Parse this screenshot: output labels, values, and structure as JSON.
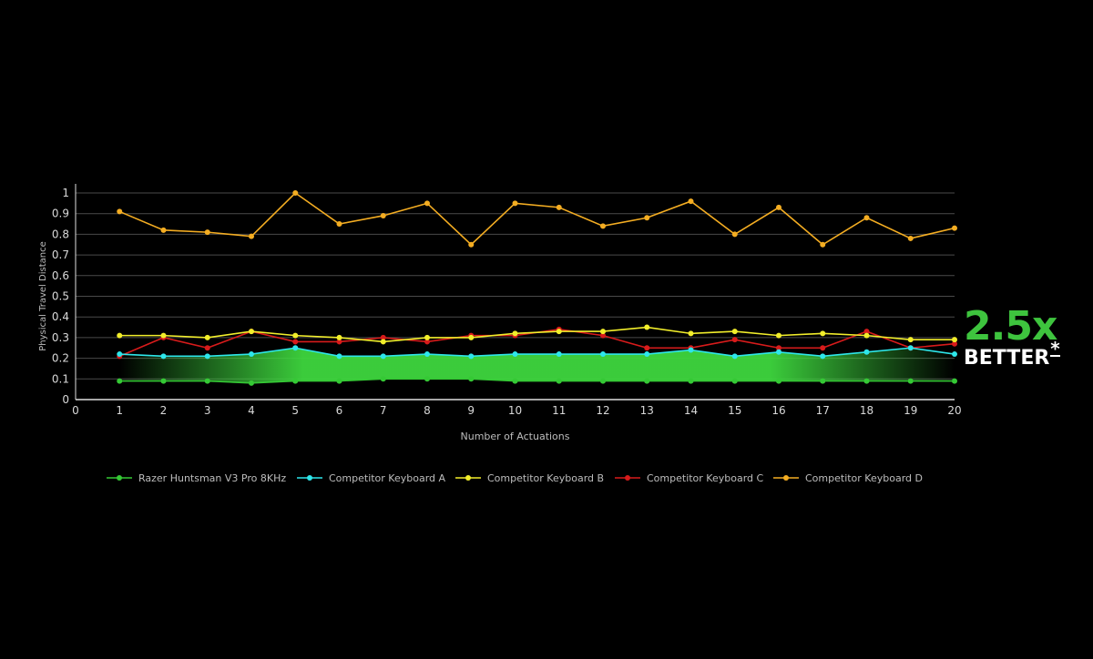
{
  "chart_data": {
    "type": "line",
    "title": "",
    "xlabel": "Number of Actuations",
    "ylabel": "Physical Travel Distance",
    "xlim": [
      0,
      20
    ],
    "ylim": [
      0,
      1
    ],
    "x_ticks": [
      0,
      1,
      2,
      3,
      4,
      5,
      6,
      7,
      8,
      9,
      10,
      11,
      12,
      13,
      14,
      15,
      16,
      17,
      18,
      19,
      20
    ],
    "y_ticks": [
      0,
      0.1,
      0.2,
      0.3,
      0.4,
      0.5,
      0.6,
      0.7,
      0.8,
      0.9,
      1
    ],
    "y_tick_labels": [
      "0",
      "0.1",
      "0.2",
      "0.3",
      "0.4",
      "0.5",
      "0.6",
      "0.7",
      "0.8",
      "0.9",
      "1"
    ],
    "grid": "horizontal",
    "legend_position": "bottom",
    "x": [
      1,
      2,
      3,
      4,
      5,
      6,
      7,
      8,
      9,
      10,
      11,
      12,
      13,
      14,
      15,
      16,
      17,
      18,
      19,
      20
    ],
    "series": [
      {
        "name": "Razer Huntsman V3 Pro 8KHz",
        "color": "#35c935",
        "values": [
          0.09,
          0.09,
          0.09,
          0.08,
          0.09,
          0.09,
          0.1,
          0.1,
          0.1,
          0.09,
          0.09,
          0.09,
          0.09,
          0.09,
          0.09,
          0.09,
          0.09,
          0.09,
          0.09,
          0.09
        ]
      },
      {
        "name": "Competitor Keyboard A",
        "color": "#2ee6ea",
        "values": [
          0.22,
          0.21,
          0.21,
          0.22,
          0.25,
          0.21,
          0.21,
          0.22,
          0.21,
          0.22,
          0.22,
          0.22,
          0.22,
          0.24,
          0.21,
          0.23,
          0.21,
          0.23,
          0.25,
          0.22
        ]
      },
      {
        "name": "Competitor Keyboard B",
        "color": "#f2ee2b",
        "values": [
          0.31,
          0.31,
          0.3,
          0.33,
          0.31,
          0.3,
          0.28,
          0.3,
          0.3,
          0.32,
          0.33,
          0.33,
          0.35,
          0.32,
          0.33,
          0.31,
          0.32,
          0.31,
          0.29,
          0.29
        ]
      },
      {
        "name": "Competitor Keyboard C",
        "color": "#d81b1b",
        "values": [
          0.21,
          0.3,
          0.25,
          0.33,
          0.28,
          0.28,
          0.3,
          0.28,
          0.31,
          0.31,
          0.34,
          0.31,
          0.25,
          0.25,
          0.29,
          0.25,
          0.25,
          0.33,
          0.25,
          0.27
        ]
      },
      {
        "name": "Competitor Keyboard D",
        "color": "#f4ad22",
        "values": [
          0.91,
          0.82,
          0.81,
          0.79,
          1.0,
          0.85,
          0.89,
          0.95,
          0.75,
          0.95,
          0.93,
          0.84,
          0.88,
          0.96,
          0.8,
          0.93,
          0.75,
          0.88,
          0.78,
          0.83
        ]
      }
    ]
  },
  "callout": {
    "value": "2.5x",
    "label": "BETTER",
    "mark": "*",
    "value_color": "#3ec43e"
  },
  "colors": {
    "background": "#000000",
    "axis": "#e0e0e0",
    "grid": "#4a4a4a",
    "text": "#d9d9d9",
    "highlight": "#3ed63e"
  }
}
